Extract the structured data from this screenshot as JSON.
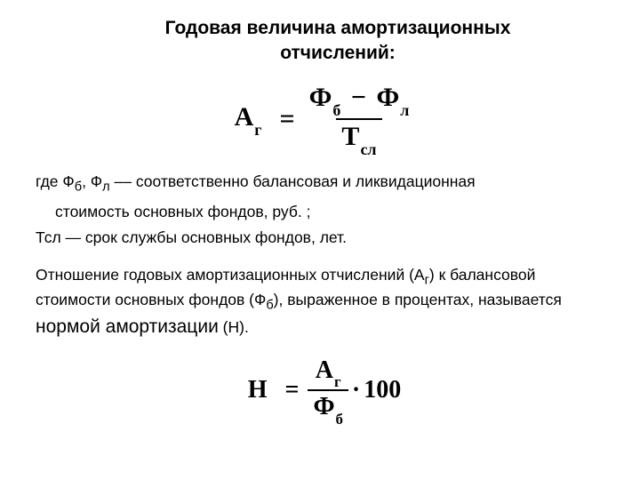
{
  "title": {
    "line1": "Годовая величина амортизационных",
    "line2": "отчислений:"
  },
  "formula1": {
    "lhs_var": "A",
    "lhs_sub": "г",
    "eq": "=",
    "num_var1": "Ф",
    "num_sub1": "б",
    "minus": "−",
    "num_var2": "Ф",
    "num_sub2": "л",
    "den_var": "T",
    "den_sub": "сл"
  },
  "def1": {
    "prefix": "где Ф",
    "sub1": "б",
    "comma": ", Ф",
    "sub2": "л",
    "dash": " –– ",
    "rest1": " соответственно балансовая и ликвидационная",
    "line2": "стоимость основных фондов, руб. ;"
  },
  "def2": "Тсл — срок службы основных фондов, лет.",
  "para2": {
    "t1": "Отношение годовых амортизационных отчислений (А",
    "s1": "г",
    "t2": ") к балансовой стоимости основных фондов (Ф",
    "s2": "б",
    "t3": "), выраженное в процентах, называется ",
    "term": "нормой амортизации",
    "t4": " (Н)."
  },
  "formula2": {
    "lhs": "Н",
    "eq": "=",
    "num_var": "A",
    "num_sub": "г",
    "den_var": "Ф",
    "den_sub": "б",
    "dot": "·",
    "hundred": "100"
  },
  "style": {
    "title_fontsize": 21,
    "body_fontsize": 17.5,
    "formula1_fontsize": 30,
    "formula2_fontsize": 28,
    "text_color": "#000000",
    "bg_color": "#ffffff"
  }
}
